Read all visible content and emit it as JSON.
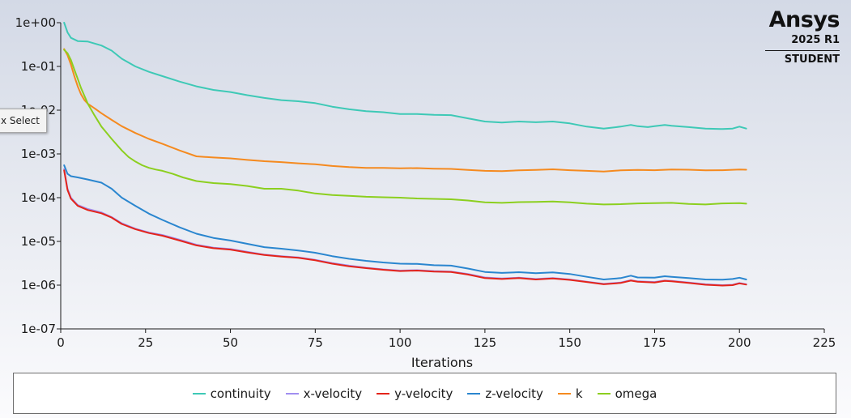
{
  "brand": {
    "name": "Ansys",
    "version": "2025 R1",
    "edition": "STUDENT"
  },
  "tooltip": {
    "text": "x Select"
  },
  "chart_data": {
    "type": "line",
    "xlabel": "Iterations",
    "ylabel": "",
    "xlim": [
      0,
      225
    ],
    "xticks": [
      0,
      25,
      50,
      75,
      100,
      125,
      150,
      175,
      200,
      225
    ],
    "ylim": [
      1e-07,
      1
    ],
    "yscale": "log",
    "yticks": [
      1e-07,
      1e-06,
      1e-05,
      0.0001,
      0.001,
      0.01,
      0.1,
      1
    ],
    "ytick_labels": [
      "1e-07",
      "1e-06",
      "1e-05",
      "1e-04",
      "1e-03",
      "1e-02",
      "1e-01",
      "1e+00"
    ],
    "grid": false,
    "legend_position": "bottom",
    "series": [
      {
        "name": "continuity",
        "color": "#3ec9b6",
        "x": [
          1,
          2,
          3,
          5,
          8,
          12,
          15,
          18,
          22,
          26,
          30,
          35,
          40,
          45,
          50,
          55,
          60,
          65,
          70,
          75,
          80,
          85,
          90,
          95,
          100,
          105,
          110,
          115,
          120,
          125,
          130,
          135,
          140,
          145,
          150,
          155,
          160,
          165,
          168,
          170,
          173,
          175,
          178,
          180,
          185,
          190,
          195,
          198,
          200,
          202
        ],
        "y": [
          1.0,
          0.6,
          0.45,
          0.38,
          0.37,
          0.3,
          0.23,
          0.15,
          0.1,
          0.075,
          0.06,
          0.045,
          0.035,
          0.029,
          0.026,
          0.022,
          0.019,
          0.017,
          0.016,
          0.0145,
          0.012,
          0.0105,
          0.0095,
          0.009,
          0.0082,
          0.0082,
          0.0078,
          0.0077,
          0.0065,
          0.0055,
          0.0052,
          0.0055,
          0.0053,
          0.0055,
          0.005,
          0.0042,
          0.0038,
          0.0042,
          0.0046,
          0.0043,
          0.0041,
          0.0043,
          0.0046,
          0.0044,
          0.0041,
          0.0038,
          0.0037,
          0.0038,
          0.0042,
          0.0038
        ]
      },
      {
        "name": "x-velocity",
        "color": "#a18ff0",
        "x": [
          1,
          2,
          3,
          5,
          8,
          12,
          15,
          18,
          22,
          26,
          30,
          35,
          40,
          45,
          50,
          55,
          60,
          65,
          70,
          75,
          80,
          85,
          90,
          95,
          100,
          105,
          110,
          115,
          120,
          125,
          130,
          135,
          140,
          145,
          150,
          155,
          160,
          165,
          168,
          170,
          175,
          178,
          180,
          185,
          190,
          195,
          198,
          200,
          202
        ],
        "y": [
          0.00045,
          0.00016,
          0.0001,
          6.8e-05,
          5.5e-05,
          4.6e-05,
          3.6e-05,
          2.6e-05,
          1.95e-05,
          1.6e-05,
          1.4e-05,
          1.1e-05,
          8.4e-06,
          7.2e-06,
          6.7e-06,
          5.8e-06,
          5e-06,
          4.6e-06,
          4.3e-06,
          3.8e-06,
          3.2e-06,
          2.8e-06,
          2.5e-06,
          2.3e-06,
          2.15e-06,
          2.2e-06,
          2.1e-06,
          2.05e-06,
          1.8e-06,
          1.5e-06,
          1.42e-06,
          1.48e-06,
          1.38e-06,
          1.45e-06,
          1.35e-06,
          1.2e-06,
          1.07e-06,
          1.15e-06,
          1.3e-06,
          1.22e-06,
          1.18e-06,
          1.28e-06,
          1.25e-06,
          1.15e-06,
          1.05e-06,
          1e-06,
          1.02e-06,
          1.12e-06,
          1.05e-06
        ]
      },
      {
        "name": "y-velocity",
        "color": "#e4241a",
        "x": [
          1,
          2,
          3,
          5,
          8,
          12,
          15,
          18,
          22,
          26,
          30,
          35,
          40,
          45,
          50,
          55,
          60,
          65,
          70,
          75,
          80,
          85,
          90,
          95,
          100,
          105,
          110,
          115,
          120,
          125,
          130,
          135,
          140,
          145,
          150,
          155,
          160,
          165,
          168,
          170,
          175,
          178,
          180,
          185,
          190,
          195,
          198,
          200,
          202
        ],
        "y": [
          0.00042,
          0.00015,
          9.5e-05,
          6.5e-05,
          5.2e-05,
          4.4e-05,
          3.5e-05,
          2.5e-05,
          1.9e-05,
          1.55e-05,
          1.35e-05,
          1.05e-05,
          8.1e-06,
          7e-06,
          6.5e-06,
          5.6e-06,
          4.9e-06,
          4.5e-06,
          4.2e-06,
          3.7e-06,
          3.1e-06,
          2.7e-06,
          2.45e-06,
          2.25e-06,
          2.1e-06,
          2.15e-06,
          2.05e-06,
          2e-06,
          1.75e-06,
          1.45e-06,
          1.38e-06,
          1.45e-06,
          1.35e-06,
          1.42e-06,
          1.32e-06,
          1.18e-06,
          1.05e-06,
          1.12e-06,
          1.27e-06,
          1.2e-06,
          1.15e-06,
          1.25e-06,
          1.22e-06,
          1.12e-06,
          1.02e-06,
          9.8e-07,
          1e-06,
          1.1e-06,
          1.03e-06
        ]
      },
      {
        "name": "z-velocity",
        "color": "#2a86cf",
        "x": [
          1,
          2,
          3,
          5,
          8,
          12,
          15,
          18,
          22,
          26,
          30,
          35,
          40,
          45,
          50,
          55,
          60,
          65,
          70,
          75,
          80,
          85,
          90,
          95,
          100,
          105,
          110,
          115,
          120,
          125,
          130,
          135,
          140,
          145,
          150,
          155,
          160,
          165,
          168,
          170,
          175,
          178,
          180,
          185,
          190,
          195,
          198,
          200,
          202
        ],
        "y": [
          0.00055,
          0.00035,
          0.00031,
          0.00029,
          0.00026,
          0.00022,
          0.00016,
          0.0001,
          6.5e-05,
          4.3e-05,
          3.1e-05,
          2.1e-05,
          1.5e-05,
          1.2e-05,
          1.05e-05,
          8.8e-06,
          7.4e-06,
          6.8e-06,
          6.2e-06,
          5.5e-06,
          4.6e-06,
          4e-06,
          3.6e-06,
          3.3e-06,
          3.1e-06,
          3.05e-06,
          2.85e-06,
          2.8e-06,
          2.4e-06,
          2e-06,
          1.9e-06,
          1.98e-06,
          1.88e-06,
          1.95e-06,
          1.8e-06,
          1.55e-06,
          1.35e-06,
          1.45e-06,
          1.65e-06,
          1.5e-06,
          1.48e-06,
          1.6e-06,
          1.55e-06,
          1.45e-06,
          1.35e-06,
          1.33e-06,
          1.38e-06,
          1.48e-06,
          1.35e-06
        ]
      },
      {
        "name": "k",
        "color": "#f58a1f",
        "x": [
          1,
          2,
          3,
          4,
          5,
          6,
          7,
          8,
          10,
          12,
          15,
          18,
          22,
          26,
          30,
          35,
          40,
          45,
          50,
          55,
          60,
          65,
          70,
          75,
          80,
          85,
          90,
          95,
          100,
          105,
          110,
          115,
          120,
          125,
          130,
          135,
          140,
          145,
          150,
          155,
          160,
          165,
          170,
          175,
          180,
          185,
          190,
          195,
          200,
          202
        ],
        "y": [
          0.25,
          0.18,
          0.11,
          0.06,
          0.035,
          0.023,
          0.017,
          0.014,
          0.011,
          0.0085,
          0.006,
          0.0043,
          0.003,
          0.0022,
          0.0017,
          0.0012,
          0.00088,
          0.00083,
          0.00079,
          0.00073,
          0.00068,
          0.00065,
          0.00061,
          0.00058,
          0.00053,
          0.0005,
          0.00048,
          0.00048,
          0.00047,
          0.000475,
          0.00046,
          0.000455,
          0.00043,
          0.00041,
          0.000405,
          0.00042,
          0.00043,
          0.000445,
          0.000425,
          0.00041,
          0.000395,
          0.00042,
          0.00043,
          0.000425,
          0.00044,
          0.000435,
          0.00042,
          0.000425,
          0.00044,
          0.000435
        ]
      },
      {
        "name": "omega",
        "color": "#8ccf1f",
        "x": [
          1,
          2,
          3,
          4,
          5,
          6,
          8,
          10,
          12,
          15,
          18,
          20,
          22,
          24,
          26,
          28,
          30,
          33,
          36,
          40,
          45,
          50,
          55,
          60,
          65,
          70,
          75,
          80,
          85,
          90,
          95,
          100,
          105,
          110,
          115,
          120,
          125,
          130,
          135,
          140,
          145,
          150,
          155,
          160,
          165,
          170,
          175,
          180,
          185,
          190,
          195,
          200,
          202
        ],
        "y": [
          0.24,
          0.2,
          0.14,
          0.085,
          0.052,
          0.032,
          0.014,
          0.0075,
          0.0042,
          0.0022,
          0.0012,
          0.00085,
          0.00067,
          0.00055,
          0.00048,
          0.00044,
          0.00041,
          0.00035,
          0.00029,
          0.00024,
          0.000215,
          0.000205,
          0.000185,
          0.00016,
          0.00016,
          0.000145,
          0.000125,
          0.000115,
          0.00011,
          0.000105,
          0.000102,
          0.0001,
          9.6e-05,
          9.4e-05,
          9.2e-05,
          8.6e-05,
          7.8e-05,
          7.6e-05,
          7.9e-05,
          8e-05,
          8.2e-05,
          7.8e-05,
          7.3e-05,
          7e-05,
          7.1e-05,
          7.4e-05,
          7.5e-05,
          7.6e-05,
          7.2e-05,
          7e-05,
          7.4e-05,
          7.5e-05,
          7.3e-05
        ]
      }
    ]
  }
}
